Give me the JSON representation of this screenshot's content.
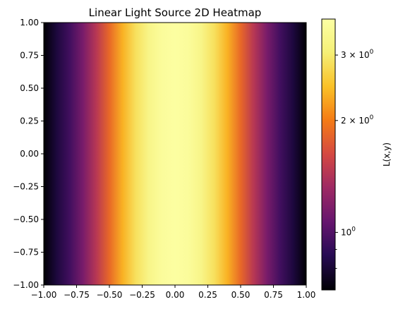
{
  "chart_data": {
    "type": "heatmap",
    "title": "Linear Light Source 2D Heatmap",
    "xlabel": "",
    "ylabel": "",
    "colormap": "inferno",
    "colorbar_scale": "log",
    "colorbar_label": "L(x,y)",
    "xlim": [
      -1.0,
      1.0
    ],
    "ylim": [
      -1.0,
      1.0
    ],
    "x_tick_labels": [
      "−1.00",
      "−0.75",
      "−0.50",
      "−0.25",
      "0.00",
      "0.25",
      "0.50",
      "0.75",
      "1.00"
    ],
    "x_tick_values": [
      -1.0,
      -0.75,
      -0.5,
      -0.25,
      0.0,
      0.25,
      0.5,
      0.75,
      1.0
    ],
    "y_tick_labels": [
      "1.00",
      "0.75",
      "0.50",
      "0.25",
      "0.00",
      "−0.25",
      "−0.50",
      "−0.75",
      "−1.00"
    ],
    "y_tick_values": [
      1.0,
      0.75,
      0.5,
      0.25,
      0.0,
      -0.25,
      -0.5,
      -0.75,
      -1.0
    ],
    "colorbar_range": [
      0.7,
      3.75
    ],
    "colorbar_ticks": [
      {
        "value": 1,
        "base": "10",
        "exponent": "0"
      },
      {
        "value": 2,
        "base": "2 × 10",
        "exponent": "0"
      },
      {
        "value": 3,
        "base": "3 × 10",
        "exponent": "0"
      }
    ],
    "colorbar_minor_ticks": [
      0.8,
      0.9
    ],
    "profile": {
      "description_of_values": "L varies only with x; constant along y",
      "x": [
        -1.0,
        -0.9,
        -0.8,
        -0.7,
        -0.6,
        -0.5,
        -0.4,
        -0.3,
        -0.2,
        -0.1,
        0.0,
        0.1,
        0.2,
        0.3,
        0.4,
        0.5,
        0.6,
        0.7,
        0.8,
        0.9,
        1.0
      ],
      "L": [
        0.7,
        0.82,
        0.95,
        1.15,
        1.45,
        1.85,
        2.35,
        2.85,
        3.3,
        3.6,
        3.7,
        3.6,
        3.3,
        2.85,
        2.35,
        1.85,
        1.45,
        1.15,
        0.95,
        0.82,
        0.7
      ]
    }
  }
}
